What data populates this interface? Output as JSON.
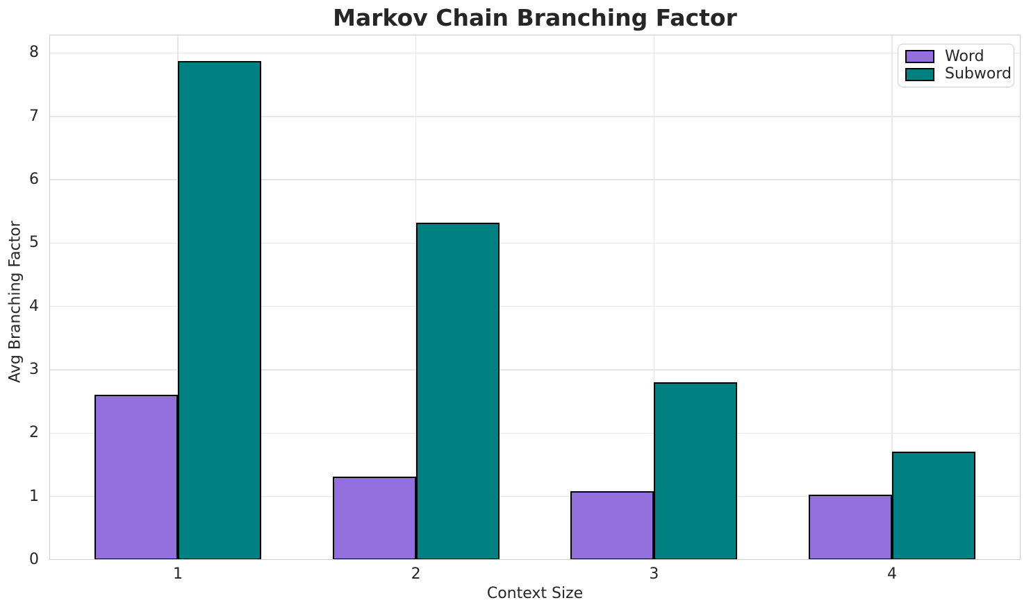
{
  "chart_data": {
    "type": "bar",
    "title": "Markov Chain Branching Factor",
    "xlabel": "Context Size",
    "ylabel": "Avg Branching Factor",
    "categories": [
      "1",
      "2",
      "3",
      "4"
    ],
    "series": [
      {
        "name": "Word",
        "color": "#9370DB",
        "values": [
          2.61,
          1.31,
          1.08,
          1.03
        ]
      },
      {
        "name": "Subword",
        "color": "#008080",
        "values": [
          7.87,
          5.32,
          2.8,
          1.71
        ]
      }
    ],
    "ylim": [
      0,
      8.29
    ],
    "yticks": [
      0,
      1,
      2,
      3,
      4,
      5,
      6,
      7,
      8
    ],
    "bar_edge_color": "#000000",
    "grid": true,
    "legend_position": "upper right"
  }
}
